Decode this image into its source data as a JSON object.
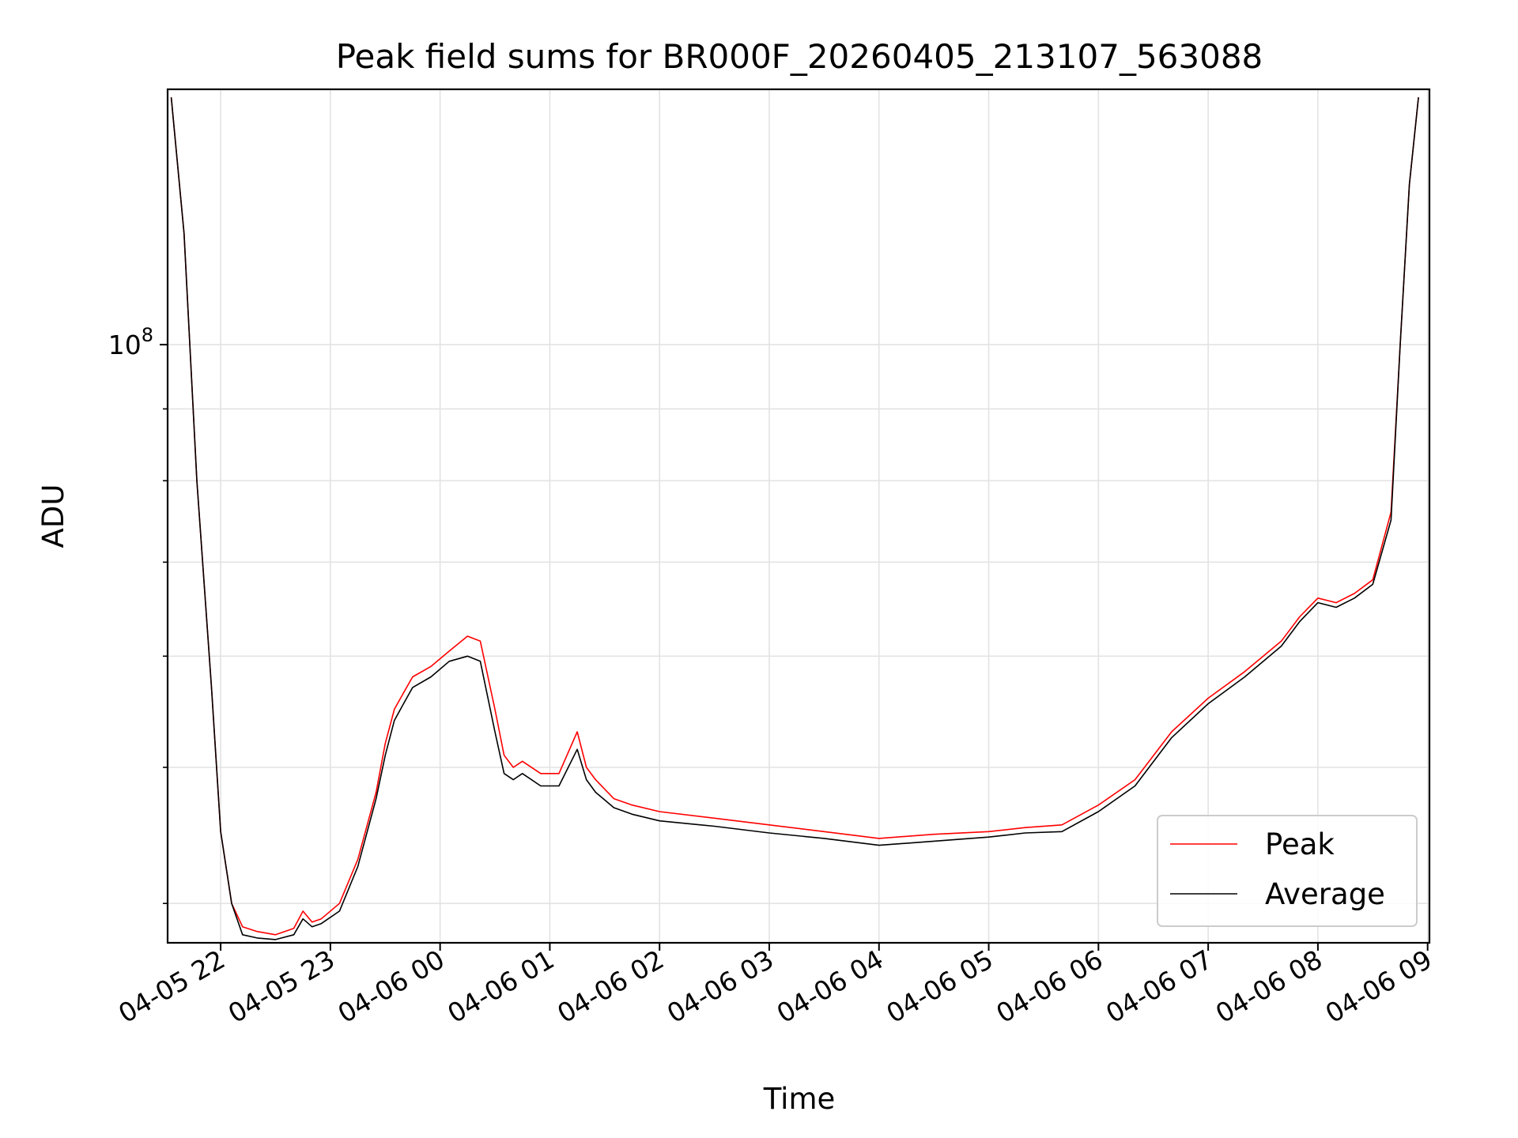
{
  "chart_data": {
    "type": "line",
    "title": "Peak field sums for BR000F_20260405_213107_563088",
    "xlabel": "Time",
    "ylabel": "ADU",
    "x_scale": "time",
    "y_scale": "log",
    "xlim": [
      "04-05 21:31",
      "04-06 09:01"
    ],
    "ylim": [
      37500000,
      152000000
    ],
    "x_ticks": [
      "04-05 22",
      "04-05 23",
      "04-06 00",
      "04-06 01",
      "04-06 02",
      "04-06 03",
      "04-06 04",
      "04-06 05",
      "04-06 06",
      "04-06 07",
      "04-06 08",
      "04-06 09"
    ],
    "y_ticks": [
      {
        "value": 100000000,
        "base": "10",
        "exp": "8"
      }
    ],
    "y_minor_ticks": [
      40000000,
      50000000,
      60000000,
      70000000,
      80000000,
      90000000,
      200000000
    ],
    "grid": true,
    "legend": {
      "position": "lower-right"
    },
    "x": [
      "04-05 21:33",
      "04-05 21:40",
      "04-05 21:47",
      "04-05 21:55",
      "04-05 22:00",
      "04-05 22:06",
      "04-05 22:12",
      "04-05 22:20",
      "04-05 22:30",
      "04-05 22:40",
      "04-05 22:45",
      "04-05 22:50",
      "04-05 22:55",
      "04-05 23:05",
      "04-05 23:15",
      "04-05 23:25",
      "04-05 23:30",
      "04-05 23:35",
      "04-05 23:40",
      "04-05 23:45",
      "04-05 23:55",
      "04-06 00:05",
      "04-06 00:15",
      "04-06 00:22",
      "04-06 00:30",
      "04-06 00:35",
      "04-06 00:40",
      "04-06 00:45",
      "04-06 00:55",
      "04-06 01:05",
      "04-06 01:15",
      "04-06 01:20",
      "04-06 01:25",
      "04-06 01:35",
      "04-06 01:45",
      "04-06 02:00",
      "04-06 02:30",
      "04-06 03:00",
      "04-06 03:30",
      "04-06 04:00",
      "04-06 04:30",
      "04-06 05:00",
      "04-06 05:20",
      "04-06 05:40",
      "04-06 06:00",
      "04-06 06:20",
      "04-06 06:40",
      "04-06 07:00",
      "04-06 07:20",
      "04-06 07:40",
      "04-06 07:50",
      "04-06 08:00",
      "04-06 08:10",
      "04-06 08:20",
      "04-06 08:30",
      "04-06 08:40",
      "04-06 08:45",
      "04-06 08:50",
      "04-06 08:55"
    ],
    "series": [
      {
        "name": "Peak",
        "color": "#ff0000",
        "values": [
          150000000,
          120000000,
          80000000,
          57000000,
          45000000,
          40000000,
          38500000,
          38200000,
          38000000,
          38400000,
          39500000,
          38800000,
          39000000,
          40000000,
          43000000,
          48000000,
          52000000,
          55000000,
          56500000,
          58000000,
          59000000,
          60500000,
          62000000,
          61500000,
          55000000,
          51000000,
          50000000,
          50500000,
          49500000,
          49500000,
          53000000,
          50000000,
          49000000,
          47500000,
          47000000,
          46500000,
          46000000,
          45500000,
          45000000,
          44500000,
          44800000,
          45000000,
          45300000,
          45500000,
          47000000,
          49000000,
          53000000,
          56000000,
          58500000,
          61500000,
          64000000,
          66000000,
          65500000,
          66500000,
          68000000,
          76000000,
          100000000,
          130000000,
          150000000
        ]
      },
      {
        "name": "Average",
        "color": "#000000",
        "values": [
          150000000,
          120000000,
          80000000,
          57000000,
          45000000,
          40000000,
          38000000,
          37800000,
          37700000,
          38000000,
          39000000,
          38500000,
          38700000,
          39500000,
          42500000,
          47500000,
          51000000,
          54000000,
          55500000,
          57000000,
          58000000,
          59500000,
          60000000,
          59500000,
          53000000,
          49500000,
          49000000,
          49500000,
          48500000,
          48500000,
          51500000,
          49000000,
          48000000,
          46800000,
          46300000,
          45800000,
          45400000,
          44900000,
          44500000,
          44000000,
          44300000,
          44600000,
          44900000,
          45000000,
          46500000,
          48500000,
          52500000,
          55500000,
          58000000,
          61000000,
          63500000,
          65500000,
          65000000,
          66000000,
          67500000,
          75000000,
          100000000,
          130000000,
          150000000
        ]
      }
    ]
  }
}
